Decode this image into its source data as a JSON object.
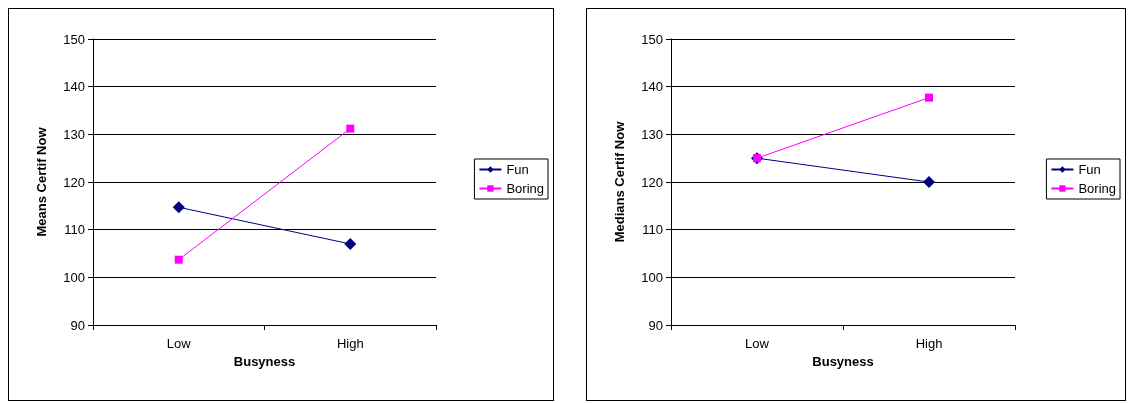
{
  "chart_data": [
    {
      "type": "line",
      "xlabel": "Busyness",
      "ylabel": "Means Certif Now",
      "categories": [
        "Low",
        "High"
      ],
      "ylim": [
        90,
        150
      ],
      "yticks": [
        90,
        100,
        110,
        120,
        130,
        140,
        150
      ],
      "grid": "y",
      "legend": "right",
      "series": [
        {
          "name": "Fun",
          "color": "#000080",
          "marker": "diamond",
          "values": [
            114.7,
            107
          ]
        },
        {
          "name": "Boring",
          "color": "#ff00ff",
          "marker": "square",
          "values": [
            103.7,
            131.2
          ]
        }
      ]
    },
    {
      "type": "line",
      "xlabel": "Busyness",
      "ylabel": "Medians Certif Now",
      "categories": [
        "Low",
        "High"
      ],
      "ylim": [
        90,
        150
      ],
      "yticks": [
        90,
        100,
        110,
        120,
        130,
        140,
        150
      ],
      "grid": "y",
      "legend": "right",
      "series": [
        {
          "name": "Fun",
          "color": "#000080",
          "marker": "diamond",
          "values": [
            125,
            120
          ]
        },
        {
          "name": "Boring",
          "color": "#ff00ff",
          "marker": "square",
          "values": [
            125,
            137.7
          ]
        }
      ]
    }
  ]
}
